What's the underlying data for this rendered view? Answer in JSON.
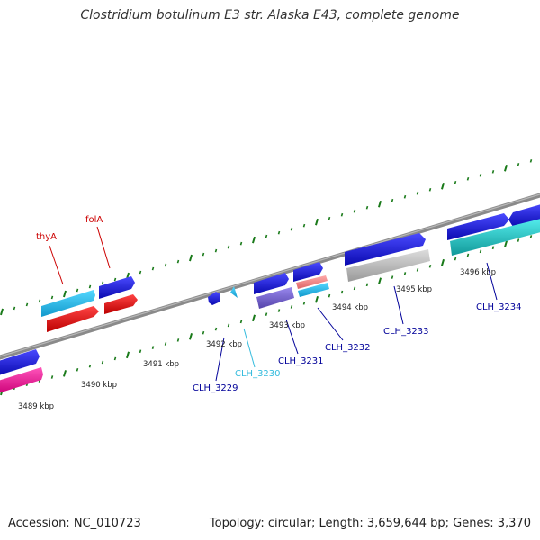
{
  "title": "Clostridium botulinum E3 str. Alaska E43, complete genome",
  "footer": {
    "accession": "Accession: NC_010723",
    "stats": "Topology: circular; Length: 3,659,644 bp; Genes: 3,370"
  },
  "kbp_labels": [
    {
      "text": "3489 kbp"
    },
    {
      "text": "3490 kbp"
    },
    {
      "text": "3491 kbp"
    },
    {
      "text": "3492 kbp"
    },
    {
      "text": "3493 kbp"
    },
    {
      "text": "3494 kbp"
    },
    {
      "text": "3495 kbp"
    },
    {
      "text": "3496 kbp"
    }
  ],
  "gene_labels": [
    {
      "text": "thyA",
      "color": "#cc0000"
    },
    {
      "text": "folA",
      "color": "#cc0000"
    },
    {
      "text": "CLH_3229",
      "color": "#000099"
    },
    {
      "text": "CLH_3230",
      "color": "#33bbdd"
    },
    {
      "text": "CLH_3231",
      "color": "#000099"
    },
    {
      "text": "CLH_3232",
      "color": "#000099"
    },
    {
      "text": "CLH_3233",
      "color": "#000099"
    },
    {
      "text": "CLH_3234",
      "color": "#000099"
    }
  ],
  "colors": {
    "backbone": "#808080",
    "ticks": "#1a7a1a",
    "blue": "#1a1adc",
    "cyan": "#22bbee",
    "red": "#ee1111",
    "pink": "#ee2299",
    "purple": "#7766cc",
    "salmon": "#ee8888",
    "gray": "#bbbbbb",
    "teal": "#22cccc"
  }
}
